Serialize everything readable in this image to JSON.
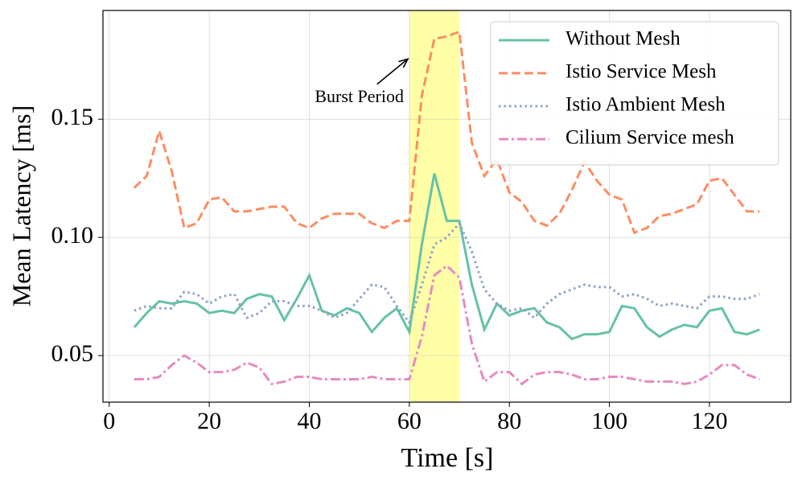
{
  "chart_data": {
    "type": "line",
    "x": [
      5,
      7.5,
      10,
      12.5,
      15,
      17.5,
      20,
      22.5,
      25,
      27.5,
      30,
      32.5,
      35,
      37.5,
      40,
      42.5,
      45,
      47.5,
      50,
      52.5,
      55,
      57.5,
      60,
      62.5,
      65,
      67.5,
      70,
      72.5,
      75,
      77.5,
      80,
      82.5,
      85,
      87.5,
      90,
      92.5,
      95,
      97.5,
      100,
      102.5,
      105,
      107.5,
      110,
      112.5,
      115,
      117.5,
      120,
      122.5,
      125,
      127.5,
      130
    ],
    "series": [
      {
        "name": "Without Mesh",
        "color": "#66c2a5",
        "dash": "solid",
        "values": [
          0.062,
          0.068,
          0.073,
          0.072,
          0.073,
          0.072,
          0.068,
          0.069,
          0.068,
          0.074,
          0.076,
          0.075,
          0.065,
          0.074,
          0.084,
          0.069,
          0.067,
          0.07,
          0.068,
          0.06,
          0.066,
          0.07,
          0.06,
          0.097,
          0.127,
          0.107,
          0.107,
          0.08,
          0.061,
          0.072,
          0.067,
          0.069,
          0.07,
          0.064,
          0.062,
          0.057,
          0.059,
          0.059,
          0.06,
          0.071,
          0.07,
          0.062,
          0.058,
          0.061,
          0.063,
          0.062,
          0.069,
          0.07,
          0.06,
          0.059,
          0.061
        ]
      },
      {
        "name": "Istio Service Mesh",
        "color": "#fc8d62",
        "dash": "dashed",
        "values": [
          0.121,
          0.126,
          0.145,
          0.128,
          0.104,
          0.106,
          0.116,
          0.117,
          0.111,
          0.111,
          0.112,
          0.113,
          0.113,
          0.106,
          0.104,
          0.108,
          0.11,
          0.11,
          0.11,
          0.106,
          0.104,
          0.107,
          0.107,
          0.16,
          0.184,
          0.185,
          0.187,
          0.14,
          0.126,
          0.133,
          0.119,
          0.115,
          0.107,
          0.105,
          0.11,
          0.12,
          0.132,
          0.124,
          0.118,
          0.116,
          0.102,
          0.104,
          0.109,
          0.11,
          0.112,
          0.114,
          0.124,
          0.125,
          0.118,
          0.111,
          0.111
        ]
      },
      {
        "name": "Istio Ambient Mesh",
        "color": "#8da0cb",
        "dash": "dotted",
        "values": [
          0.069,
          0.071,
          0.07,
          0.07,
          0.077,
          0.076,
          0.072,
          0.075,
          0.076,
          0.066,
          0.068,
          0.073,
          0.073,
          0.071,
          0.071,
          0.069,
          0.066,
          0.068,
          0.074,
          0.08,
          0.079,
          0.071,
          0.064,
          0.08,
          0.097,
          0.1,
          0.106,
          0.094,
          0.078,
          0.072,
          0.069,
          0.07,
          0.066,
          0.072,
          0.076,
          0.078,
          0.08,
          0.079,
          0.079,
          0.075,
          0.076,
          0.074,
          0.071,
          0.072,
          0.071,
          0.07,
          0.075,
          0.075,
          0.074,
          0.074,
          0.076
        ]
      },
      {
        "name": "Cilium Service mesh",
        "color": "#e78ac3",
        "dash": "dashdot",
        "values": [
          0.04,
          0.04,
          0.041,
          0.046,
          0.05,
          0.047,
          0.043,
          0.043,
          0.044,
          0.047,
          0.045,
          0.038,
          0.039,
          0.041,
          0.041,
          0.04,
          0.04,
          0.04,
          0.04,
          0.041,
          0.04,
          0.04,
          0.04,
          0.058,
          0.084,
          0.088,
          0.083,
          0.055,
          0.039,
          0.043,
          0.043,
          0.038,
          0.042,
          0.043,
          0.043,
          0.042,
          0.04,
          0.04,
          0.041,
          0.041,
          0.04,
          0.039,
          0.039,
          0.039,
          0.038,
          0.039,
          0.042,
          0.046,
          0.046,
          0.042,
          0.04
        ]
      }
    ],
    "x_label": "Time [s]",
    "y_label": "Mean Latency [ms]",
    "xlim": [
      -1.25,
      136.25
    ],
    "ylim": [
      0.0303,
      0.196
    ],
    "xticks": [
      0,
      20,
      40,
      60,
      80,
      100,
      120
    ],
    "yticks": [
      0.05,
      {
        "value": 0.1,
        "label": "0.10"
      },
      0.15
    ],
    "grid": true,
    "legend": "upper right",
    "highlight": {
      "x": [
        60,
        70
      ],
      "color": "#ffff99"
    },
    "annotation": {
      "text": "Burst Period",
      "xy": [
        59.7,
        0.1755
      ],
      "xytext": [
        50,
        0.159
      ]
    }
  }
}
